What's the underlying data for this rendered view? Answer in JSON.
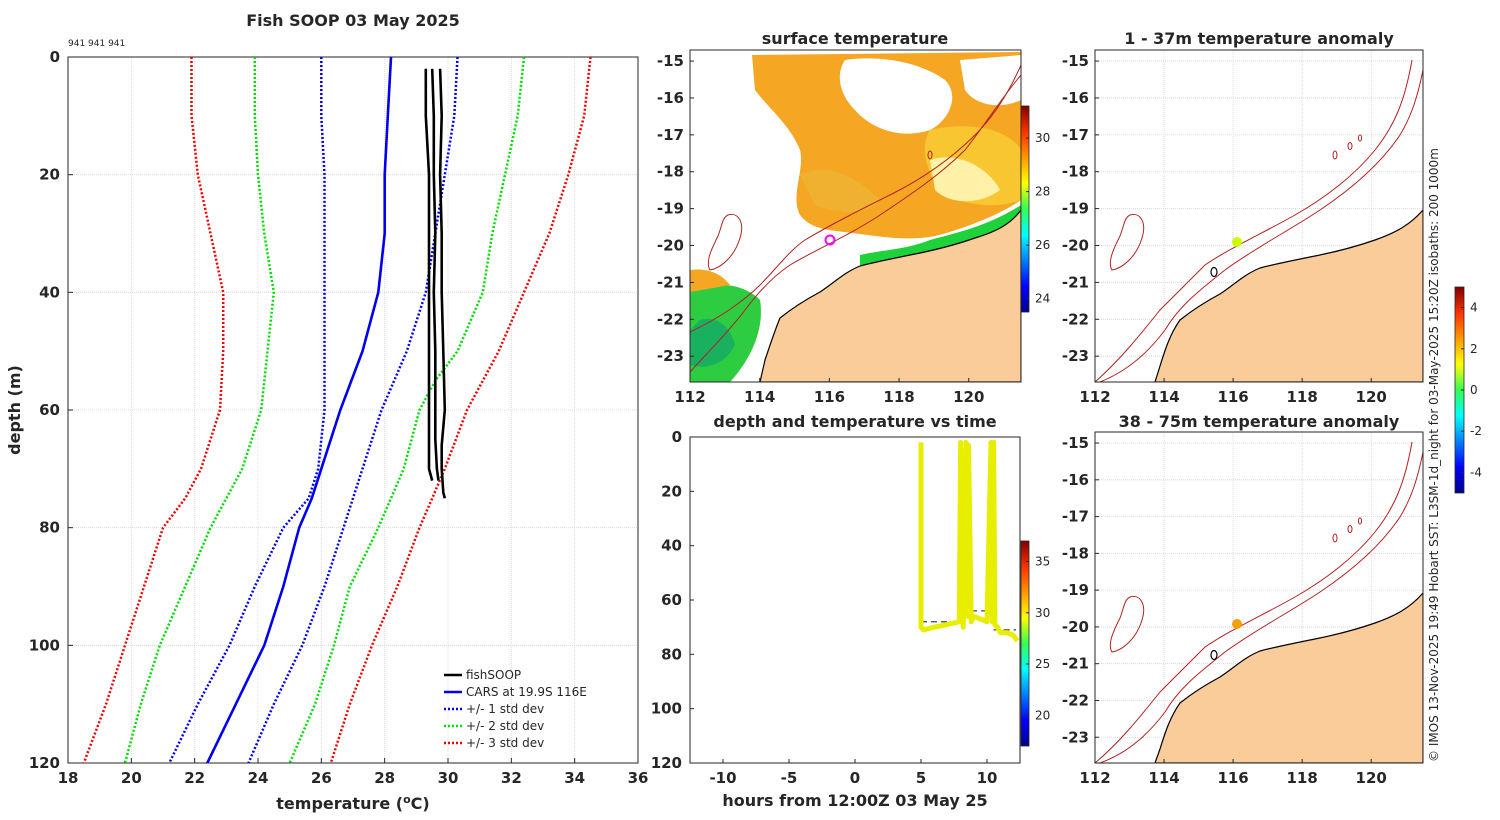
{
  "header": {
    "title": "Fish SOOP 03 May 2025",
    "ids": "941 941 941",
    "credit": "© IMOS 13-Nov-2025 19:49 Hobart SST: L3SM-1d_night for 03-May-2025 15:20Z isobaths: 200  1000m"
  },
  "colors": {
    "fishsoop": "#000000",
    "cars": "#0000ee",
    "std1": "#0000ee",
    "std2": "#00dd00",
    "std3": "#ee0000",
    "land": "#f9cc99",
    "isobath": "#b22222",
    "grid": "#d4d4d4",
    "track": "#e8ee00"
  },
  "chart_data": [
    {
      "id": "profile",
      "type": "line",
      "title": "Fish SOOP 03 May 2025",
      "xlabel": "temperature (",
      "xlabel_sup": "o",
      "xlabel_end": "C)",
      "ylabel": "depth (m)",
      "xlim": [
        18,
        36
      ],
      "ylim": [
        0,
        120
      ],
      "xticks": [
        "18",
        "20",
        "22",
        "24",
        "26",
        "28",
        "30",
        "32",
        "34",
        "36"
      ],
      "yticks": [
        "0",
        "20",
        "40",
        "60",
        "80",
        "100",
        "120"
      ],
      "legend": [
        "fishSOOP",
        "CARS at 19.9S 116E",
        "+/- 1 std dev",
        "+/- 2 std dev",
        "+/- 3 std dev"
      ],
      "series": [
        {
          "name": "CARS mean",
          "style": "solid",
          "color": "#0000ee",
          "depth": [
            0,
            10,
            20,
            30,
            40,
            50,
            60,
            70,
            75,
            80,
            90,
            100,
            110,
            120
          ],
          "temp": [
            28.2,
            28.1,
            28.0,
            28.0,
            27.8,
            27.3,
            26.6,
            26.0,
            25.7,
            25.3,
            24.8,
            24.2,
            23.3,
            22.4
          ]
        },
        {
          "name": "+1 std",
          "style": "dot",
          "color": "#0000ee",
          "depth": [
            0,
            10,
            20,
            30,
            40,
            50,
            55,
            60,
            70,
            80,
            90,
            100,
            110,
            120
          ],
          "temp": [
            30.3,
            30.2,
            29.9,
            29.6,
            29.3,
            28.7,
            28.3,
            27.9,
            27.3,
            26.7,
            26.1,
            25.4,
            24.5,
            23.7
          ]
        },
        {
          "name": "-1 std",
          "style": "dot",
          "color": "#0000ee",
          "depth": [
            0,
            10,
            20,
            30,
            40,
            50,
            60,
            70,
            75,
            80,
            90,
            100,
            110,
            120
          ],
          "temp": [
            26.0,
            26.0,
            26.1,
            26.1,
            26.1,
            26.1,
            26.1,
            25.9,
            25.6,
            24.8,
            23.9,
            23.1,
            22.1,
            21.2
          ]
        },
        {
          "name": "+2 std",
          "style": "dot",
          "color": "#00dd00",
          "depth": [
            0,
            10,
            20,
            30,
            40,
            50,
            55,
            60,
            70,
            80,
            90,
            100,
            110,
            120
          ],
          "temp": [
            32.4,
            32.2,
            31.8,
            31.4,
            31.1,
            30.3,
            29.6,
            29.1,
            28.6,
            27.8,
            26.9,
            26.4,
            25.8,
            25.0
          ]
        },
        {
          "name": "-2 std",
          "style": "dot",
          "color": "#00dd00",
          "depth": [
            0,
            10,
            20,
            30,
            40,
            50,
            60,
            70,
            75,
            80,
            90,
            100,
            110,
            120
          ],
          "temp": [
            23.9,
            23.9,
            24.0,
            24.2,
            24.5,
            24.3,
            24.1,
            23.5,
            23.0,
            22.5,
            21.7,
            20.9,
            20.3,
            19.8
          ]
        },
        {
          "name": "+3 std",
          "style": "dot",
          "color": "#ee0000",
          "depth": [
            0,
            10,
            20,
            30,
            40,
            50,
            60,
            70,
            75,
            80,
            90,
            100,
            110,
            120
          ],
          "temp": [
            34.5,
            34.3,
            33.8,
            33.2,
            32.4,
            31.6,
            30.6,
            29.9,
            29.5,
            29.1,
            28.4,
            27.6,
            26.9,
            26.3
          ]
        },
        {
          "name": "-3 std",
          "style": "dot",
          "color": "#ee0000",
          "depth": [
            0,
            10,
            20,
            30,
            40,
            50,
            60,
            70,
            75,
            80,
            90,
            100,
            110,
            120
          ],
          "temp": [
            21.9,
            21.9,
            22.1,
            22.5,
            22.9,
            22.9,
            22.8,
            22.2,
            21.7,
            21.0,
            20.4,
            19.8,
            19.2,
            18.5
          ]
        },
        {
          "name": "fishSOOP cast 1",
          "style": "thick",
          "color": "#000000",
          "depth": [
            2,
            10,
            20,
            30,
            40,
            50,
            60,
            65,
            70,
            72
          ],
          "temp": [
            29.3,
            29.3,
            29.4,
            29.4,
            29.4,
            29.4,
            29.4,
            29.4,
            29.4,
            29.5
          ]
        },
        {
          "name": "fishSOOP cast 2",
          "style": "thick",
          "color": "#000000",
          "depth": [
            2,
            10,
            20,
            30,
            40,
            50,
            60,
            65,
            70,
            72
          ],
          "temp": [
            29.5,
            29.55,
            29.55,
            29.6,
            29.55,
            29.6,
            29.6,
            29.6,
            29.65,
            29.7
          ]
        },
        {
          "name": "fishSOOP cast 3",
          "style": "thick",
          "color": "#000000",
          "depth": [
            2,
            10,
            20,
            30,
            40,
            50,
            60,
            66,
            70,
            74,
            75
          ],
          "temp": [
            29.75,
            29.8,
            29.75,
            29.8,
            29.8,
            29.85,
            29.9,
            29.8,
            29.8,
            29.85,
            29.9
          ]
        }
      ]
    },
    {
      "id": "sst",
      "type": "heatmap",
      "title": "surface temperature",
      "xlim": [
        112,
        121.5
      ],
      "ylim": [
        -23.7,
        -14.7
      ],
      "xticks": [
        "112",
        "114",
        "116",
        "118",
        "120"
      ],
      "yticks": [
        "-15",
        "-16",
        "-17",
        "-18",
        "-19",
        "-20",
        "-21",
        "-22",
        "-23"
      ],
      "colorbar": {
        "ticks": [
          "30",
          "28",
          "26",
          "24"
        ],
        "range": [
          23.5,
          31.2
        ]
      }
    },
    {
      "id": "anom1",
      "type": "heatmap",
      "title": "1 - 37m temperature anomaly",
      "xticks": [
        "112",
        "114",
        "116",
        "118",
        "120"
      ],
      "yticks": [
        "-15",
        "-16",
        "-17",
        "-18",
        "-19",
        "-20",
        "-21",
        "-22",
        "-23"
      ],
      "point": {
        "lon": 116.0,
        "lat": -19.9,
        "anomaly": 0.8
      }
    },
    {
      "id": "anom2",
      "type": "heatmap",
      "title": "38 - 75m temperature anomaly",
      "xticks": [
        "112",
        "114",
        "116",
        "118",
        "120"
      ],
      "yticks": [
        "-15",
        "-16",
        "-17",
        "-18",
        "-19",
        "-20",
        "-21",
        "-22",
        "-23"
      ],
      "point": {
        "lon": 116.1,
        "lat": -19.9,
        "anomaly": 2.3
      }
    },
    {
      "id": "anomcb",
      "type": "heatmap",
      "colorbar": {
        "ticks": [
          "4",
          "2",
          "0",
          "-2",
          "-4"
        ],
        "range": [
          -5,
          5
        ]
      }
    },
    {
      "id": "timeseries",
      "type": "scatter",
      "title": "depth and temperature vs time",
      "xlabel": "hours from 12:00Z 03 May 25",
      "xlim": [
        -12.5,
        12.5
      ],
      "ylim": [
        0,
        120
      ],
      "xticks": [
        "-10",
        "-5",
        "0",
        "5",
        "10"
      ],
      "yticks": [
        "0",
        "20",
        "40",
        "60",
        "80",
        "100",
        "120"
      ],
      "colorbar": {
        "ticks": [
          "35",
          "30",
          "25",
          "20"
        ],
        "range": [
          17,
          37
        ]
      },
      "track": {
        "hours": [
          5.0,
          5.0,
          5.2,
          6,
          7,
          7.9,
          8.0,
          8.2,
          8.4,
          8.5,
          8.6,
          8.8,
          9,
          10,
          10.3,
          10.4,
          10.5,
          10.6,
          10.8,
          11,
          11.5,
          12,
          12.3
        ],
        "depth": [
          2,
          70,
          71,
          70,
          69,
          68,
          2,
          70,
          2,
          66,
          3,
          68,
          66,
          68,
          2,
          68,
          2,
          69,
          70,
          72,
          72,
          73,
          75
        ]
      },
      "gaps": [
        {
          "from": 5.0,
          "to": 8.0,
          "depth": 68
        },
        {
          "from": 8.8,
          "to": 10.5,
          "depth": 64
        },
        {
          "from": 10.5,
          "to": 12.2,
          "depth": 71
        }
      ]
    }
  ]
}
